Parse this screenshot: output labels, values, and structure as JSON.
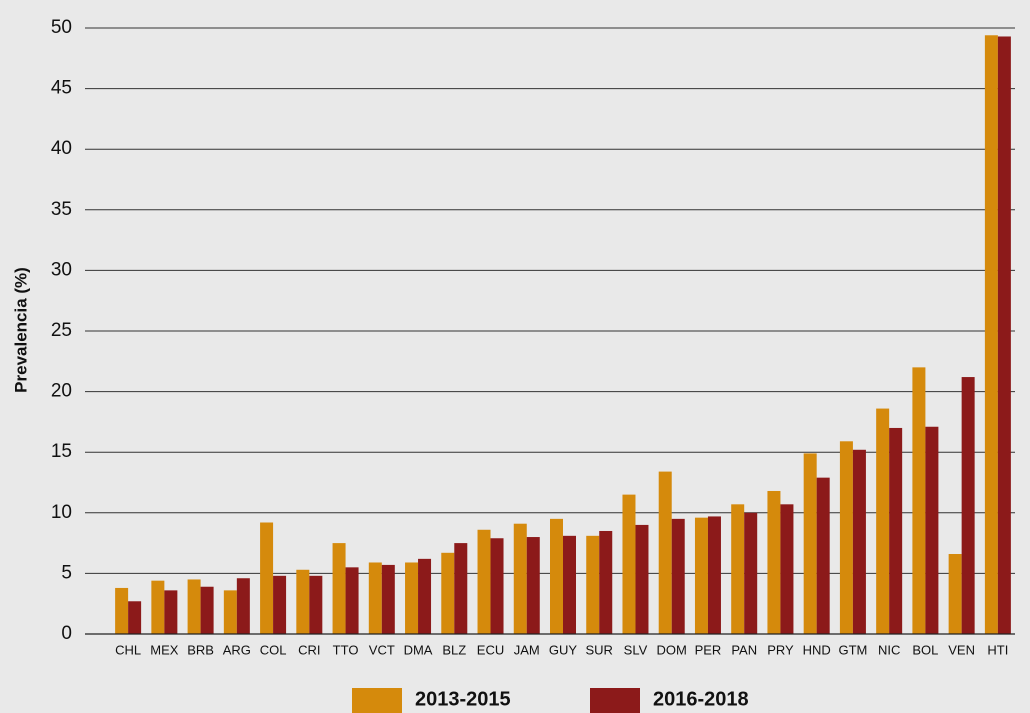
{
  "chart_data": {
    "type": "bar",
    "y_label": "Prevalencia (%)",
    "categories": [
      "CHL",
      "MEX",
      "BRB",
      "ARG",
      "COL",
      "CRI",
      "TTO",
      "VCT",
      "DMA",
      "BLZ",
      "ECU",
      "JAM",
      "GUY",
      "SUR",
      "SLV",
      "DOM",
      "PER",
      "PAN",
      "PRY",
      "HND",
      "GTM",
      "NIC",
      "BOL",
      "VEN",
      "HTI"
    ],
    "series": [
      {
        "name": "2013-2015",
        "color": "#d58a0c",
        "values": [
          3.8,
          4.4,
          4.5,
          3.6,
          9.2,
          5.3,
          7.5,
          5.9,
          5.9,
          6.7,
          8.6,
          9.1,
          9.5,
          8.1,
          11.5,
          13.4,
          9.6,
          10.7,
          11.8,
          14.9,
          15.9,
          18.6,
          22.0,
          6.6,
          49.4
        ]
      },
      {
        "name": "2016-2018",
        "color": "#8c1a1a",
        "values": [
          2.7,
          3.6,
          3.9,
          4.6,
          4.8,
          4.8,
          5.5,
          5.7,
          6.2,
          7.5,
          7.9,
          8.0,
          8.1,
          8.5,
          9.0,
          9.5,
          9.7,
          10.0,
          10.7,
          12.9,
          15.2,
          17.0,
          17.1,
          21.2,
          49.3
        ]
      }
    ],
    "ylim": [
      0,
      50
    ],
    "yticks": [
      0,
      5,
      10,
      15,
      20,
      25,
      30,
      35,
      40,
      45,
      50
    ],
    "grid": true,
    "legend": "bottom"
  }
}
